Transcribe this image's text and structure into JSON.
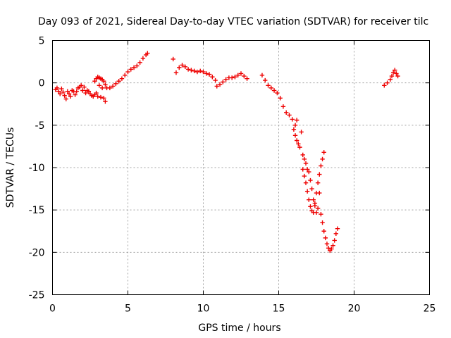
{
  "chart_data": {
    "type": "scatter",
    "title": "Day 093 of 2021, Sidereal Day-to-day VTEC variation (SDTVAR) for receiver tilc",
    "xlabel": "GPS time / hours",
    "ylabel": "SDTVAR / TECUs",
    "xlim": [
      0,
      25
    ],
    "ylim": [
      -25,
      5
    ],
    "xticks": [
      0,
      5,
      10,
      15,
      20,
      25
    ],
    "yticks": [
      5,
      0,
      -5,
      -10,
      -15,
      -20,
      -25
    ],
    "grid": true,
    "marker": "plus",
    "color": "#ee0000",
    "series": [
      {
        "points": [
          [
            0.2,
            -0.8
          ],
          [
            0.4,
            -1.0
          ],
          [
            0.6,
            -0.7
          ],
          [
            0.8,
            -1.5
          ],
          [
            0.9,
            -1.9
          ],
          [
            1.1,
            -1.3
          ],
          [
            1.3,
            -0.9
          ],
          [
            1.5,
            -1.4
          ],
          [
            1.7,
            -0.6
          ],
          [
            1.9,
            -0.3
          ],
          [
            2.1,
            -0.5
          ],
          [
            2.3,
            -0.9
          ],
          [
            2.5,
            -1.3
          ],
          [
            2.7,
            -1.6
          ],
          [
            2.9,
            -1.2
          ],
          [
            0.3,
            -0.6
          ],
          [
            0.5,
            -1.3
          ],
          [
            0.7,
            -1.1
          ],
          [
            1.0,
            -1.0
          ],
          [
            1.2,
            -1.6
          ],
          [
            1.4,
            -1.0
          ],
          [
            1.6,
            -1.0
          ],
          [
            1.8,
            -0.5
          ],
          [
            2.0,
            -0.9
          ],
          [
            2.2,
            -1.2
          ],
          [
            2.4,
            -1.0
          ],
          [
            2.6,
            -1.5
          ],
          [
            2.8,
            -1.4
          ],
          [
            3.0,
            -1.6
          ],
          [
            3.2,
            -1.7
          ],
          [
            3.4,
            -1.8
          ],
          [
            3.5,
            -2.2
          ],
          [
            2.8,
            0.2
          ],
          [
            2.9,
            0.5
          ],
          [
            3.0,
            0.7
          ],
          [
            3.1,
            0.6
          ],
          [
            3.2,
            0.5
          ],
          [
            3.3,
            0.4
          ],
          [
            3.4,
            0.2
          ],
          [
            3.5,
            -0.2
          ],
          [
            3.6,
            -0.6
          ],
          [
            3.1,
            -0.3
          ],
          [
            3.3,
            -0.6
          ],
          [
            3.8,
            -0.6
          ],
          [
            4.0,
            -0.4
          ],
          [
            4.2,
            -0.1
          ],
          [
            4.4,
            0.2
          ],
          [
            4.6,
            0.5
          ],
          [
            4.8,
            0.9
          ],
          [
            5.0,
            1.3
          ],
          [
            5.2,
            1.6
          ],
          [
            5.4,
            1.8
          ],
          [
            5.6,
            2.0
          ],
          [
            5.8,
            2.4
          ],
          [
            6.0,
            2.9
          ],
          [
            6.2,
            3.3
          ],
          [
            6.3,
            3.5
          ],
          [
            8.0,
            2.8
          ],
          [
            8.2,
            1.2
          ],
          [
            8.4,
            1.8
          ],
          [
            8.6,
            2.1
          ],
          [
            8.8,
            1.9
          ],
          [
            9.0,
            1.6
          ],
          [
            9.2,
            1.5
          ],
          [
            9.4,
            1.4
          ],
          [
            9.6,
            1.3
          ],
          [
            9.8,
            1.4
          ],
          [
            10.0,
            1.3
          ],
          [
            10.2,
            1.1
          ],
          [
            10.4,
            1.0
          ],
          [
            10.6,
            0.7
          ],
          [
            10.8,
            0.3
          ],
          [
            10.9,
            -0.4
          ],
          [
            11.1,
            -0.2
          ],
          [
            11.3,
            0.1
          ],
          [
            11.5,
            0.4
          ],
          [
            11.7,
            0.6
          ],
          [
            11.9,
            0.6
          ],
          [
            12.1,
            0.7
          ],
          [
            12.3,
            0.9
          ],
          [
            12.5,
            1.1
          ],
          [
            12.7,
            0.8
          ],
          [
            12.9,
            0.5
          ],
          [
            13.9,
            0.9
          ],
          [
            14.1,
            0.3
          ],
          [
            14.3,
            -0.3
          ],
          [
            14.5,
            -0.6
          ],
          [
            14.7,
            -0.9
          ],
          [
            14.9,
            -1.2
          ],
          [
            15.1,
            -1.8
          ],
          [
            15.3,
            -2.8
          ],
          [
            15.5,
            -3.5
          ],
          [
            15.7,
            -3.8
          ],
          [
            15.9,
            -4.3
          ],
          [
            16.1,
            -5.0
          ],
          [
            16.2,
            -4.4
          ],
          [
            16.0,
            -5.5
          ],
          [
            16.1,
            -6.2
          ],
          [
            16.2,
            -6.8
          ],
          [
            16.3,
            -7.2
          ],
          [
            16.4,
            -7.6
          ],
          [
            16.5,
            -5.8
          ],
          [
            16.6,
            -8.5
          ],
          [
            16.7,
            -9.0
          ],
          [
            16.8,
            -9.5
          ],
          [
            16.9,
            -10.2
          ],
          [
            17.0,
            -10.5
          ],
          [
            17.1,
            -11.5
          ],
          [
            17.2,
            -12.5
          ],
          [
            17.3,
            -13.8
          ],
          [
            17.4,
            -14.5
          ],
          [
            17.5,
            -15.3
          ],
          [
            17.6,
            -14.8
          ],
          [
            17.7,
            -13.0
          ],
          [
            16.6,
            -10.2
          ],
          [
            16.7,
            -11.0
          ],
          [
            16.8,
            -11.8
          ],
          [
            16.9,
            -12.8
          ],
          [
            17.0,
            -13.8
          ],
          [
            17.1,
            -14.6
          ],
          [
            17.2,
            -15.1
          ],
          [
            17.3,
            -15.3
          ],
          [
            17.4,
            -14.2
          ],
          [
            17.5,
            -13.0
          ],
          [
            17.6,
            -11.8
          ],
          [
            17.7,
            -10.8
          ],
          [
            17.8,
            -9.8
          ],
          [
            17.9,
            -9.0
          ],
          [
            18.0,
            -8.2
          ],
          [
            17.8,
            -15.5
          ],
          [
            17.9,
            -16.5
          ],
          [
            18.0,
            -17.5
          ],
          [
            18.1,
            -18.3
          ],
          [
            18.2,
            -19.0
          ],
          [
            18.3,
            -19.5
          ],
          [
            18.4,
            -19.8
          ],
          [
            18.5,
            -19.6
          ],
          [
            18.6,
            -19.2
          ],
          [
            18.7,
            -18.6
          ],
          [
            18.8,
            -17.8
          ],
          [
            18.9,
            -17.2
          ],
          [
            22.0,
            -0.3
          ],
          [
            22.2,
            0.0
          ],
          [
            22.4,
            0.4
          ],
          [
            22.5,
            0.8
          ],
          [
            22.6,
            1.2
          ],
          [
            22.7,
            1.5
          ],
          [
            22.8,
            1.1
          ],
          [
            22.9,
            0.8
          ]
        ]
      }
    ]
  }
}
